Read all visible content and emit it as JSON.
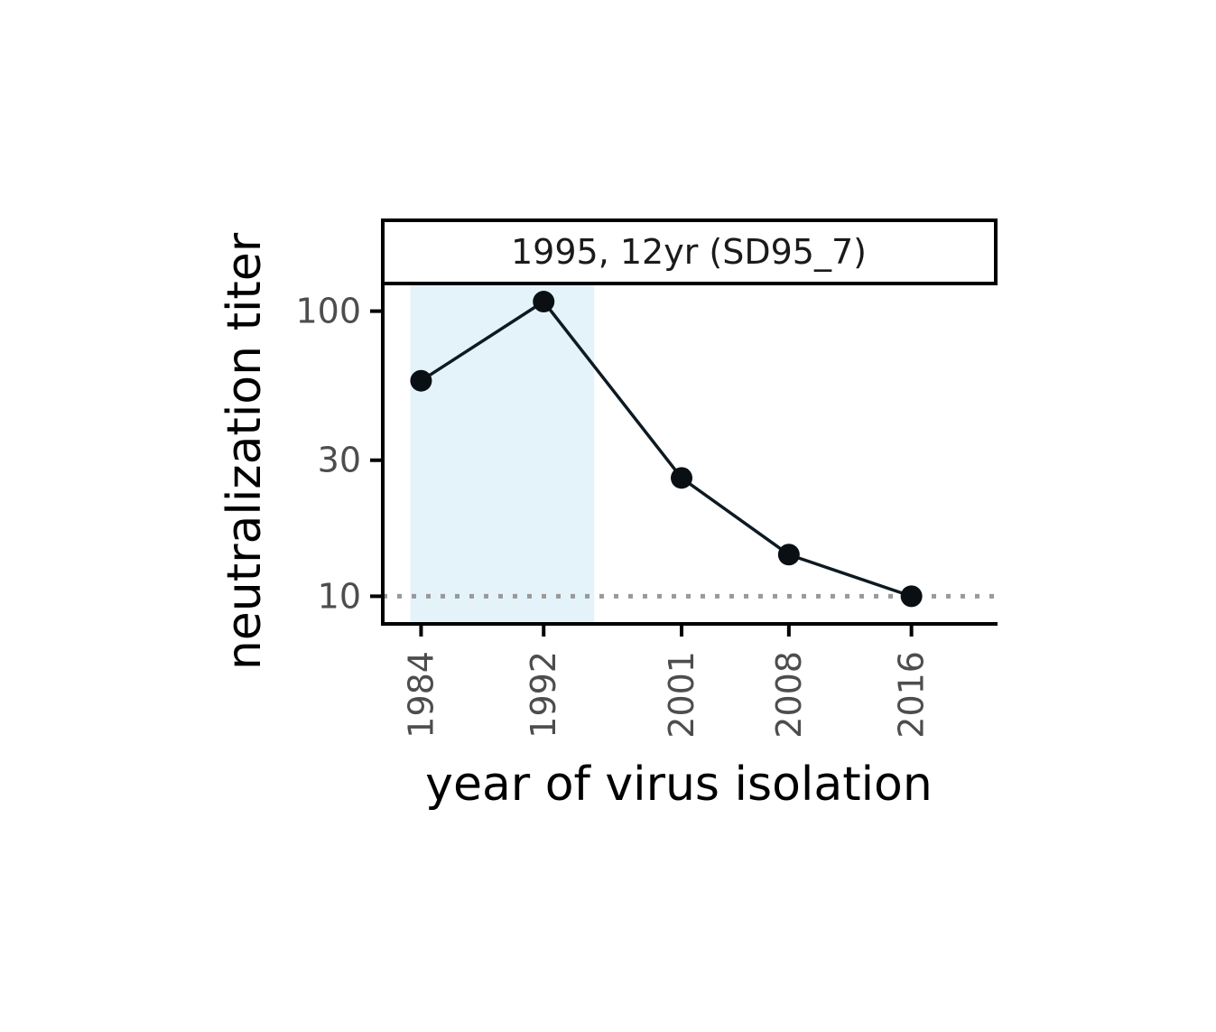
{
  "chart_data": {
    "type": "line",
    "panel_title": "1995, 12yr (SD95_7)",
    "xlabel": "year of virus isolation",
    "ylabel": "neutralization titer",
    "y_scale": "log",
    "xlim": [
      1981.5,
      2021.5
    ],
    "ylim": [
      8.0,
      125.0
    ],
    "x_ticks": [
      1984,
      1992,
      2001,
      2008,
      2016
    ],
    "y_ticks": [
      10,
      30,
      100
    ],
    "x_tick_labels": [
      "1984",
      "1992",
      "2001",
      "2008",
      "2016"
    ],
    "y_tick_labels": [
      "10",
      "30",
      "100"
    ],
    "series": [
      {
        "points": [
          {
            "x": 1984,
            "y": 57
          },
          {
            "x": 1992,
            "y": 108
          },
          {
            "x": 2001,
            "y": 26
          },
          {
            "x": 2008,
            "y": 14
          },
          {
            "x": 2016,
            "y": 10
          }
        ]
      }
    ],
    "highlight_range": [
      1983.3,
      1995.3
    ],
    "reference_line": {
      "y": 10,
      "style": "dotted"
    },
    "colors": {
      "highlight": "#e4f3fa",
      "line": "#0d1a22",
      "point": "#0a0f14",
      "reference": "#999999",
      "axis": "#000000"
    },
    "grid": false
  }
}
